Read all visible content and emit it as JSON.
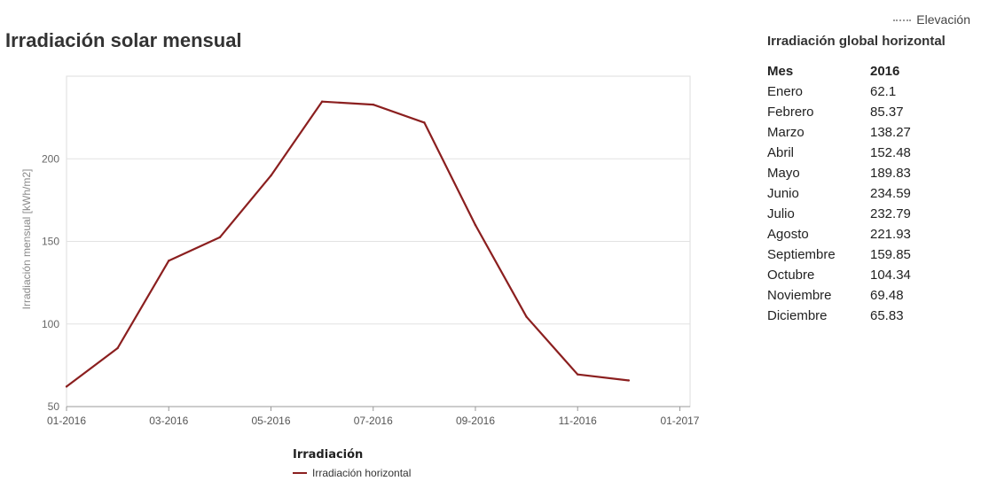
{
  "top_legend": {
    "label": "Elevación"
  },
  "title": "Irradiación solar mensual",
  "chart_data": {
    "type": "line",
    "title": "Irradiación solar mensual",
    "xlabel": "",
    "ylabel": "Irradiación mensual [kWh/m2]",
    "x": [
      "01-2016",
      "02-2016",
      "03-2016",
      "04-2016",
      "05-2016",
      "06-2016",
      "07-2016",
      "08-2016",
      "09-2016",
      "10-2016",
      "11-2016",
      "12-2016"
    ],
    "x_ticks": [
      "01-2016",
      "03-2016",
      "05-2016",
      "07-2016",
      "09-2016",
      "11-2016",
      "01-2017"
    ],
    "y_ticks": [
      50,
      100,
      150,
      200
    ],
    "ylim": [
      50,
      250
    ],
    "grid": true,
    "legend_title": "Irradiación",
    "legend_position": "bottom-center",
    "series": [
      {
        "name": "Irradiación horizontal",
        "color": "#8b1f1f",
        "values": [
          62.1,
          85.37,
          138.27,
          152.48,
          189.83,
          234.59,
          232.79,
          221.93,
          159.85,
          104.34,
          69.48,
          65.83
        ]
      }
    ]
  },
  "table": {
    "title": "Irradiación global horizontal",
    "headers": [
      "Mes",
      "2016"
    ],
    "rows": [
      [
        "Enero",
        "62.1"
      ],
      [
        "Febrero",
        "85.37"
      ],
      [
        "Marzo",
        "138.27"
      ],
      [
        "Abril",
        "152.48"
      ],
      [
        "Mayo",
        "189.83"
      ],
      [
        "Junio",
        "234.59"
      ],
      [
        "Julio",
        "232.79"
      ],
      [
        "Agosto",
        "221.93"
      ],
      [
        "Septiembre",
        "159.85"
      ],
      [
        "Octubre",
        "104.34"
      ],
      [
        "Noviembre",
        "69.48"
      ],
      [
        "Diciembre",
        "65.83"
      ]
    ]
  }
}
